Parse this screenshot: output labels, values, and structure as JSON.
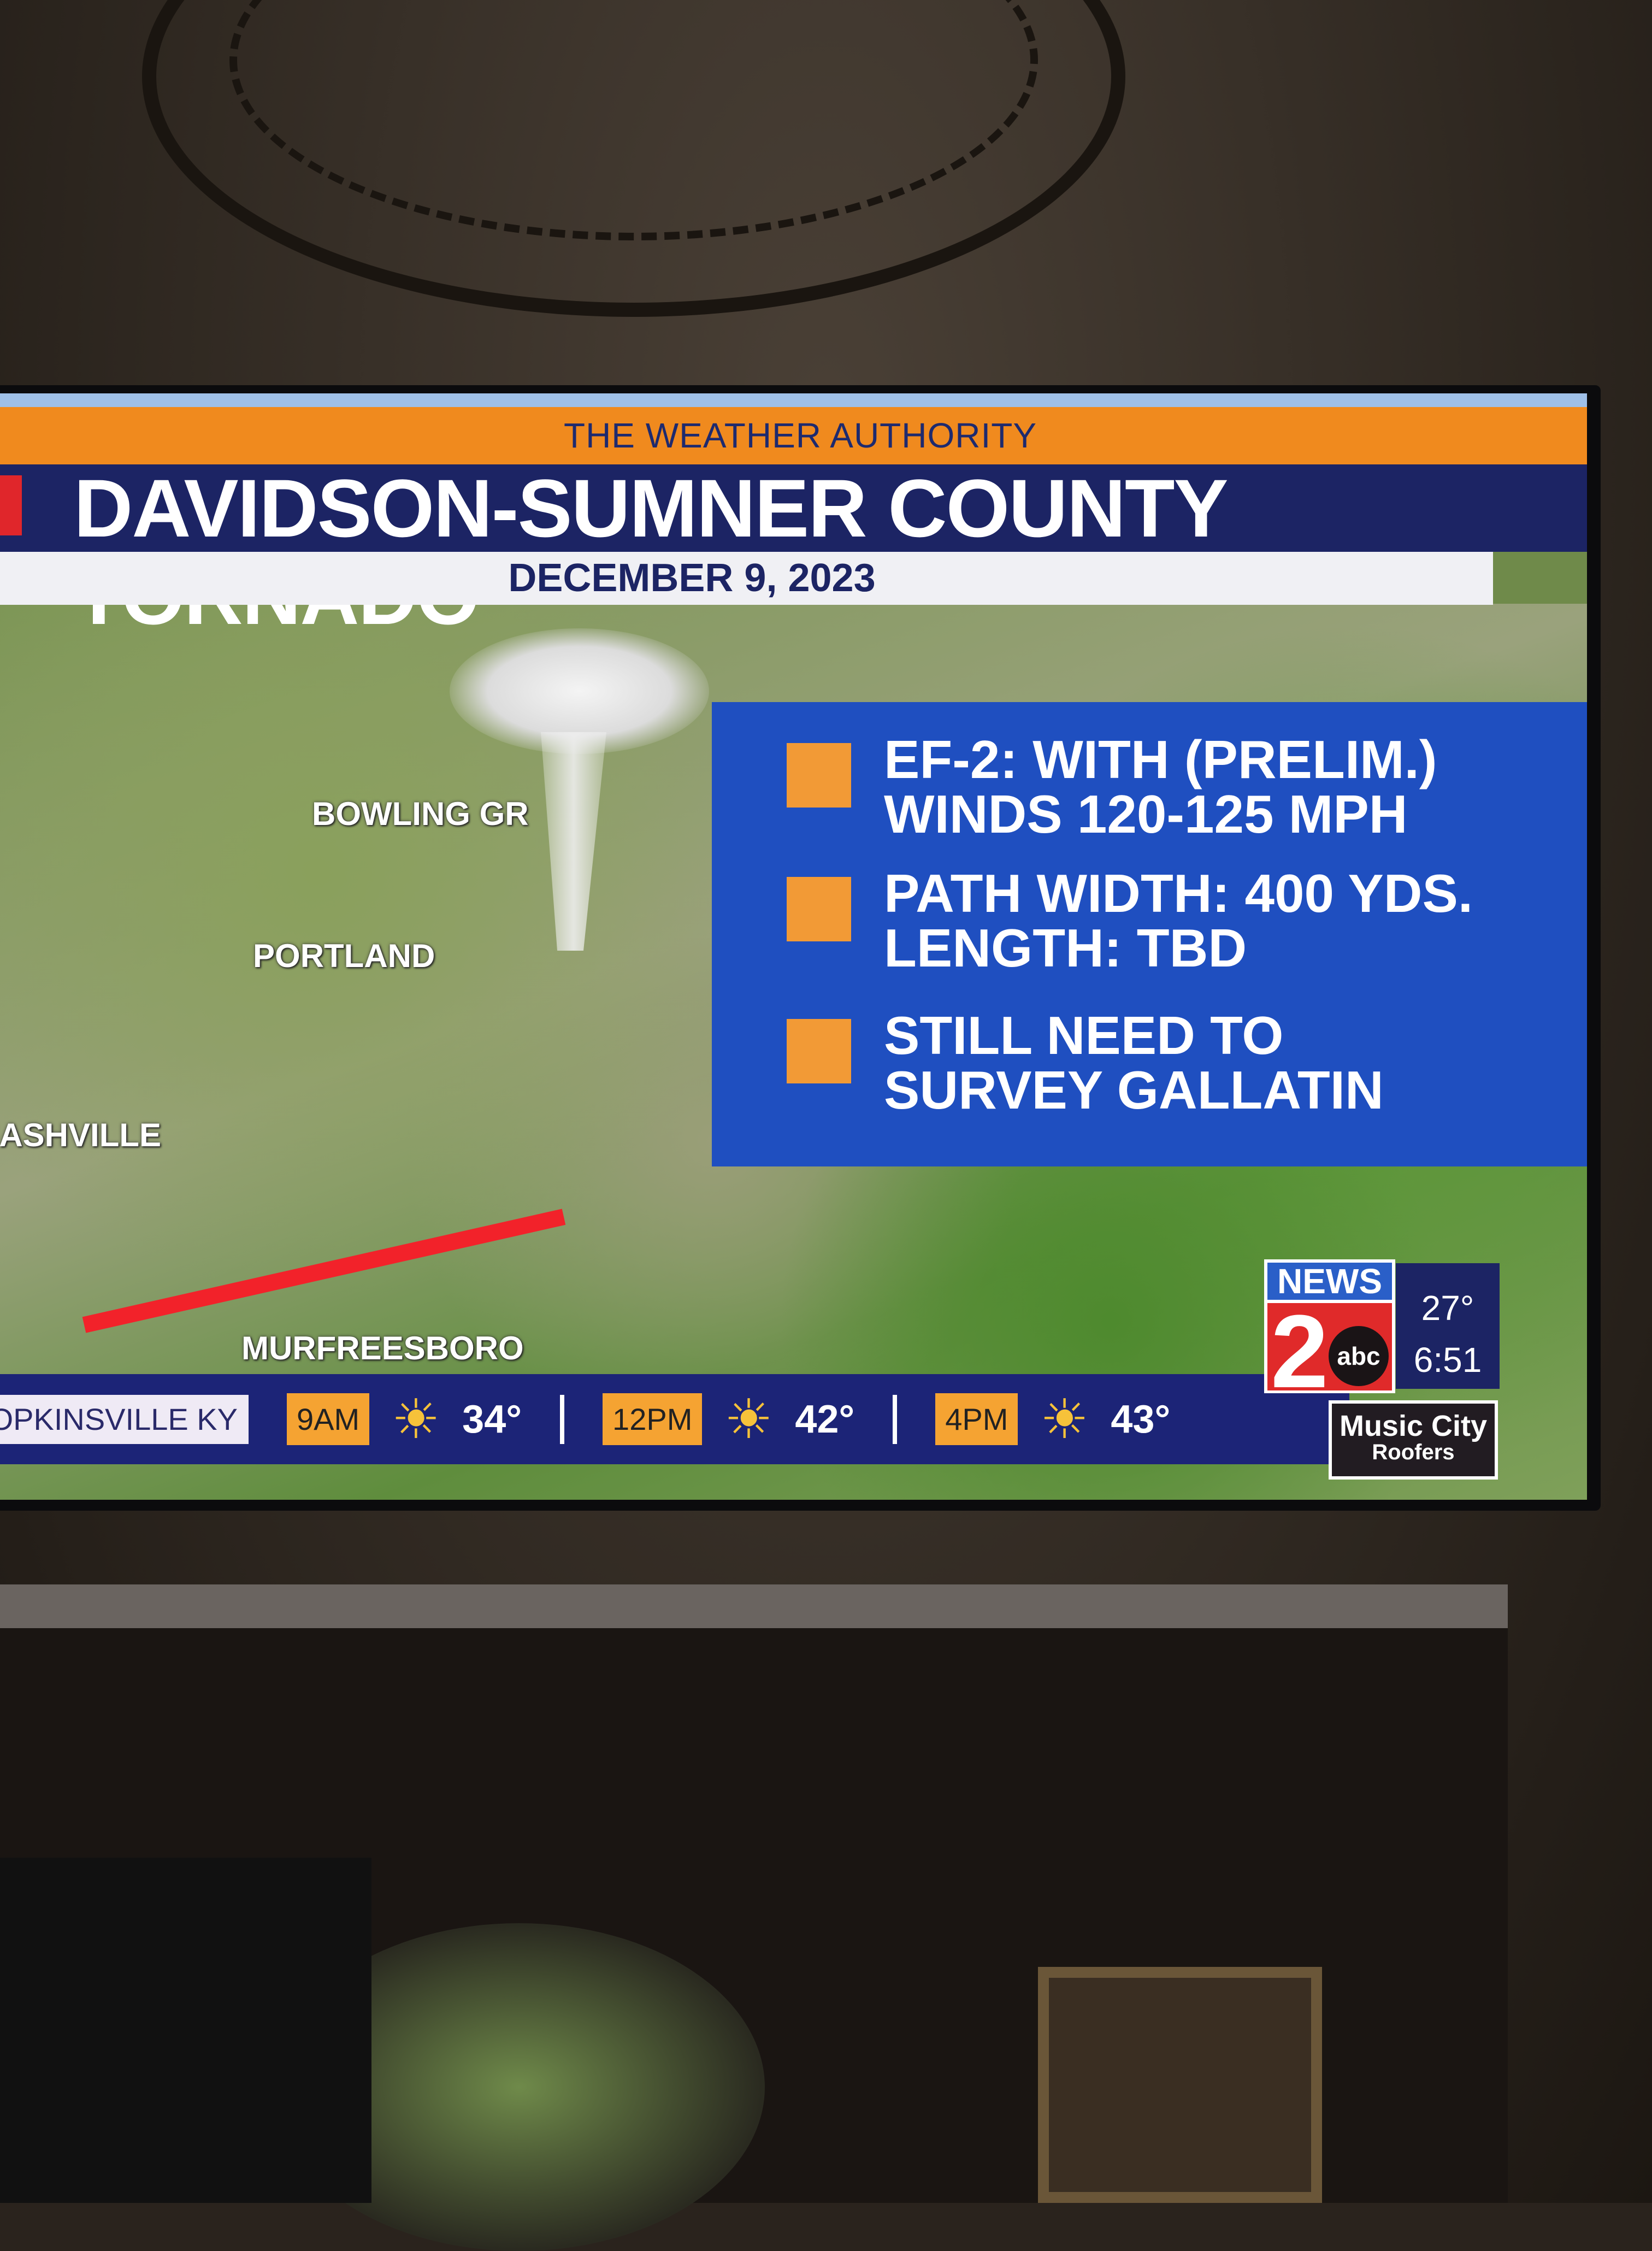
{
  "broadcast": {
    "banner": "THE WEATHER AUTHORITY",
    "title": "DAVIDSON-SUMNER COUNTY TORNADO",
    "date": "DECEMBER 9, 2023",
    "colors": {
      "banner": "#f08a1e",
      "title_bar": "#1c2464",
      "info_box": "#1f4fc0",
      "bullet": "#f29a36",
      "track": "#f2222a"
    }
  },
  "map": {
    "cities": [
      "BOWLING GR",
      "PORTLAND",
      "NASHVILLE",
      "MURFREESBORO"
    ],
    "icons": [
      "tornado-icon",
      "damage-track-line"
    ]
  },
  "info": {
    "bullets": [
      {
        "line1": "EF-2: WITH (PRELIM.)",
        "line2": "WINDS 120-125 MPH"
      },
      {
        "line1": "PATH WIDTH: 400 YDS.",
        "line2": "LENGTH: TBD"
      },
      {
        "line1": "STILL NEED TO",
        "line2": "SURVEY GALLATIN"
      }
    ]
  },
  "ticker": {
    "location": "HOPKINSVILLE KY",
    "forecast": [
      {
        "time": "9AM",
        "icon": "sun-icon",
        "temp": "34°"
      },
      {
        "time": "12PM",
        "icon": "sun-icon",
        "temp": "42°"
      },
      {
        "time": "4PM",
        "icon": "sun-icon",
        "temp": "43°"
      }
    ]
  },
  "station": {
    "logo_top": "NEWS",
    "logo_number": "2",
    "logo_network": "abc",
    "temperature": "27°",
    "clock": "6:51"
  },
  "sponsor": {
    "line1": "Music City",
    "line2": "Roofers"
  }
}
